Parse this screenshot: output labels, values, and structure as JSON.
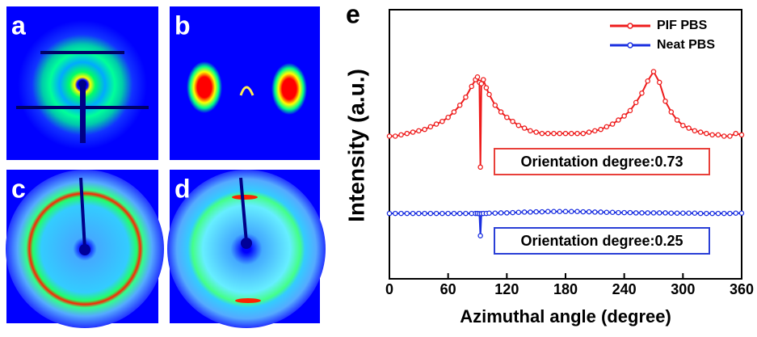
{
  "panel_labels": [
    "a",
    "b",
    "c",
    "d"
  ],
  "chart_data": {
    "type": "line",
    "panel_label": "e",
    "x_label": "Azimuthal angle (degree)",
    "y_label": "Intensity (a.u.)",
    "xlim": [
      0,
      360
    ],
    "xticks": [
      0,
      60,
      120,
      180,
      240,
      300,
      360
    ],
    "ylim": [
      0,
      100
    ],
    "legend": "upper right",
    "annotations": [
      {
        "text": "Orientation degree:0.73",
        "color": "#e8403a"
      },
      {
        "text": "Orientation degree:0.25",
        "color": "#2a3fd6"
      }
    ],
    "x": [
      0,
      6,
      12,
      18,
      24,
      30,
      36,
      42,
      48,
      54,
      60,
      66,
      72,
      78,
      84,
      88,
      90,
      92,
      93,
      94,
      96,
      99,
      102,
      108,
      114,
      120,
      126,
      132,
      138,
      144,
      150,
      156,
      162,
      168,
      174,
      180,
      186,
      192,
      198,
      204,
      210,
      216,
      222,
      228,
      234,
      240,
      246,
      252,
      258,
      264,
      270,
      276,
      282,
      288,
      294,
      300,
      306,
      312,
      318,
      324,
      330,
      336,
      342,
      348,
      354,
      360
    ],
    "series": [
      {
        "name": "PIF PBS",
        "color": "#ee1c1c",
        "values": [
          53,
          53,
          53.5,
          54,
          54.5,
          55,
          55.5,
          56.5,
          57.5,
          58.5,
          60,
          62,
          64.5,
          67.5,
          71.5,
          74,
          75,
          73,
          41.5,
          72.5,
          74,
          71,
          68.5,
          64.5,
          62,
          60,
          58.5,
          57,
          56,
          55,
          54.5,
          54,
          54,
          54,
          54,
          54,
          54,
          54,
          54,
          54.5,
          55,
          55.5,
          56.5,
          57.5,
          59,
          60.5,
          62.5,
          65.5,
          69,
          73.5,
          77,
          73,
          66,
          62,
          59,
          57,
          56,
          55,
          54.5,
          54,
          53.5,
          53.5,
          53,
          53,
          54,
          53.5
        ]
      },
      {
        "name": "Neat PBS",
        "color": "#1a2fe0",
        "values": [
          24.3,
          24.3,
          24.3,
          24.3,
          24.3,
          24.3,
          24.3,
          24.3,
          24.3,
          24.3,
          24.3,
          24.3,
          24.3,
          24.3,
          24.3,
          24.3,
          24.3,
          24.2,
          16,
          24.2,
          24.3,
          24.3,
          24.4,
          24.4,
          24.5,
          24.5,
          24.6,
          24.7,
          24.8,
          24.8,
          24.9,
          24.9,
          25,
          25,
          25,
          25,
          25,
          25,
          24.9,
          24.9,
          24.8,
          24.8,
          24.7,
          24.7,
          24.6,
          24.6,
          24.6,
          24.5,
          24.5,
          24.5,
          24.5,
          24.5,
          24.5,
          24.4,
          24.4,
          24.4,
          24.4,
          24.4,
          24.3,
          24.3,
          24.3,
          24.3,
          24.3,
          24.3,
          24.4,
          24.4
        ]
      }
    ]
  }
}
